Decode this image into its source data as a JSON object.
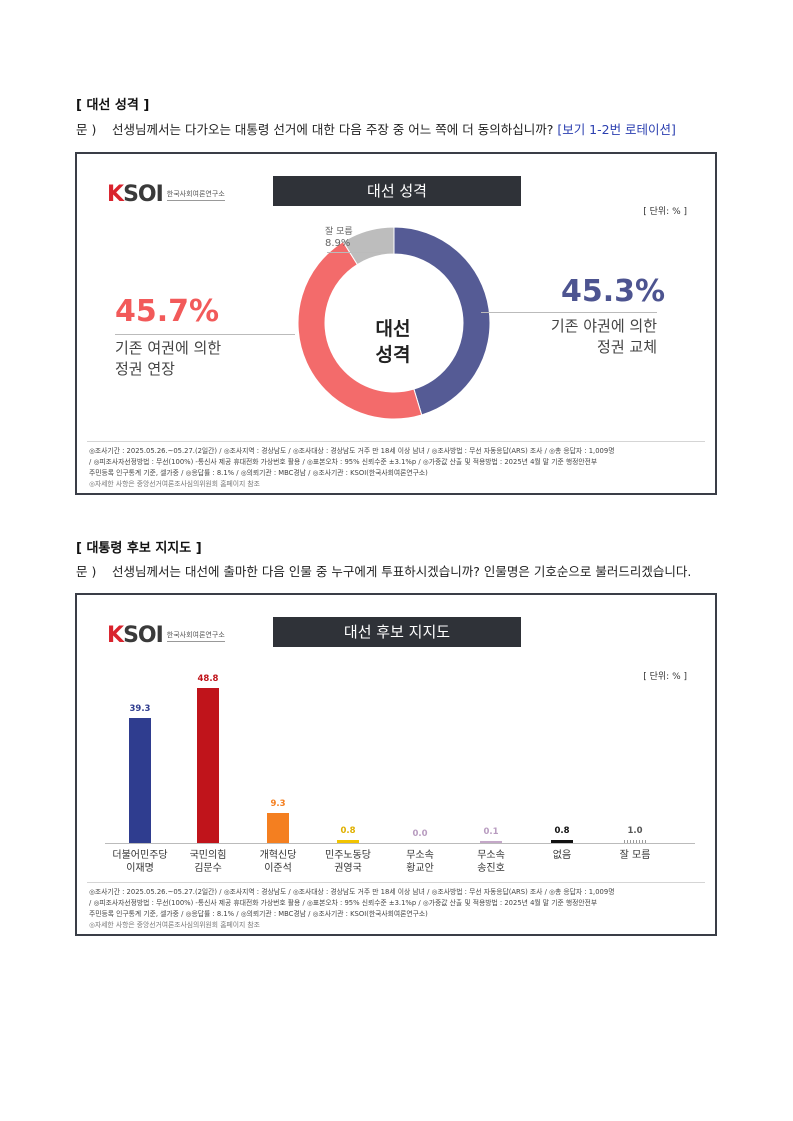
{
  "section1": {
    "title": "[ 대선 성격 ]",
    "question_prefix": "문 )",
    "question_text": "선생님께서는 다가오는 대통령 선거에 대한 다음 주장 중 어느 쪽에 더 동의하십니까?",
    "question_note": "[보기 1-2번 로테이션]"
  },
  "panel1": {
    "logo_word": "KSOI",
    "logo_sub": "한국사회여론연구소",
    "title": "대선 성격",
    "unit": "[ 단위: % ]",
    "center_line1": "대선",
    "center_line2": "성격",
    "left_pct": "45.7%",
    "left_label_line1": "기존 여권에 의한",
    "left_label_line2": "정권 연장",
    "right_pct": "45.3%",
    "right_label_line1": "기존 야권에 의한",
    "right_label_line2": "정권 교체",
    "dk_label": "잘 모름",
    "dk_pct": "8.9%"
  },
  "chart_data": [
    {
      "type": "pie",
      "title": "대선 성격",
      "unit": "%",
      "donut": true,
      "slices": [
        {
          "label": "기존 야권에 의한 정권 교체",
          "value": 45.3,
          "color": "#555b95"
        },
        {
          "label": "기존 여권에 의한 정권 연장",
          "value": 45.7,
          "color": "#f36b6b"
        },
        {
          "label": "잘 모름",
          "value": 8.9,
          "color": "#bdbdbd"
        }
      ]
    },
    {
      "type": "bar",
      "title": "대선 후보 지지도",
      "unit": "%",
      "categories": [
        "더불어민주당 이재명",
        "국민의힘 김문수",
        "개혁신당 이준석",
        "민주노동당 권영국",
        "무소속 황교안",
        "무소속 송진호",
        "없음",
        "잘 모름"
      ],
      "values": [
        39.3,
        48.8,
        9.3,
        0.8,
        0.0,
        0.1,
        0.8,
        1.0
      ],
      "colors": [
        "#2f3d8f",
        "#c0141b",
        "#f47f20",
        "#f2c400",
        "#c4a8c8",
        "#c4a8c8",
        "#111111",
        "#bdbdbd"
      ],
      "ylim": [
        0,
        55
      ]
    }
  ],
  "section2": {
    "title": "[ 대통령 후보 지지도 ]",
    "question_prefix": "문 )",
    "question_text": "선생님께서는 대선에 출마한 다음 인물 중 누구에게 투표하시겠습니까? 인물명은 기호순으로 불러드리겠습니다."
  },
  "panel2": {
    "logo_word": "KSOI",
    "logo_sub": "한국사회여론연구소",
    "title": "대선 후보 지지도",
    "unit": "[ 단위: % ]",
    "value_labels": [
      "39.3",
      "48.8",
      "9.3",
      "0.8",
      "0.0",
      "0.1",
      "0.8",
      "1.0"
    ],
    "cat_line1": [
      "더불어민주당",
      "국민의힘",
      "개혁신당",
      "민주노동당",
      "무소속",
      "무소속",
      "없음",
      "잘 모름"
    ],
    "cat_line2": [
      "이재명",
      "김문수",
      "이준석",
      "권영국",
      "황교안",
      "송진호",
      "",
      ""
    ]
  },
  "footnote": {
    "line1": "◎조사기간 : 2025.05.26.~05.27.(2일간)  / ◎조사지역 : 경상남도 / ◎조사대상 : 경상남도 거주 만 18세 이상 남녀 / ◎조사방법 : 무선 자동응답(ARS) 조사 / ◎총 응답자 : 1,009명",
    "line2": "/ ◎피조사자선정방법 : 무선(100%) -통신사 제공 휴대전화 가상번호 활용 / ◎표본오차 : 95% 신뢰수준 ±3.1%p / ◎가중값 산출 및 적용방법 : 2025년 4월 말 기준 행정안전부",
    "line3": "주민등록 인구통계 기준, 셀가중 / ◎응답률 : 8.1% / ◎의뢰기관 : MBC경남 / ◎조사기관 : KSOI(한국사회여론연구소)",
    "line4": "◎자세한 사항은 중앙선거여론조사심의위원회 홈페이지 참조"
  }
}
